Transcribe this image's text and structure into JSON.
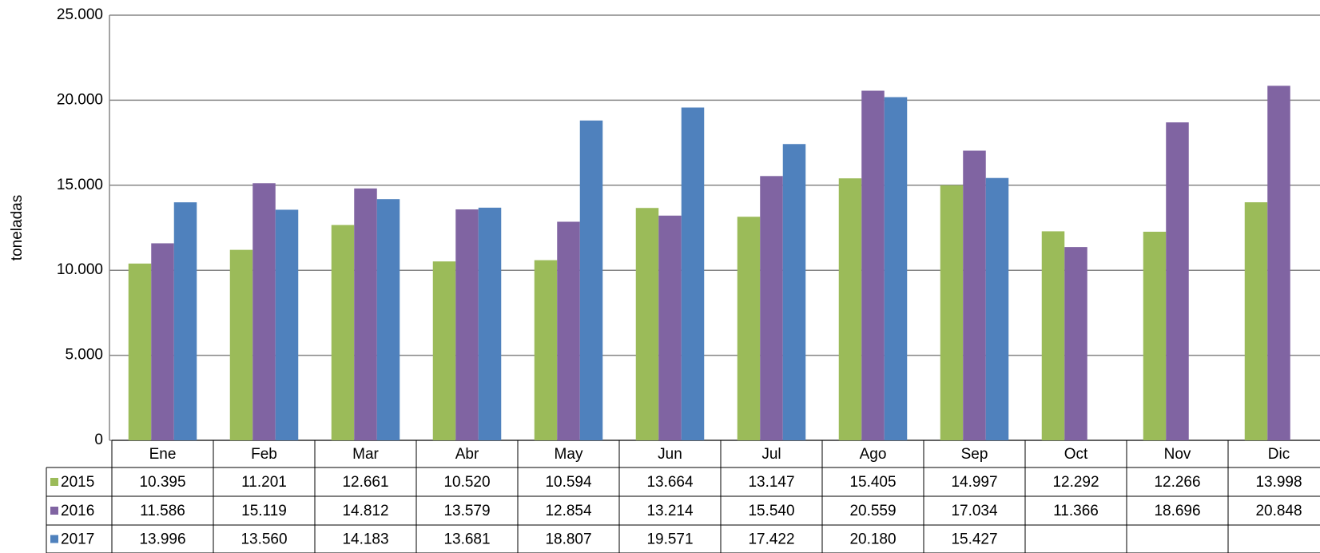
{
  "chart_data": {
    "type": "bar",
    "y_label": "toneladas",
    "categories": [
      "Ene",
      "Feb",
      "Mar",
      "Abr",
      "May",
      "Jun",
      "Jul",
      "Ago",
      "Sep",
      "Oct",
      "Nov",
      "Dic"
    ],
    "series": [
      {
        "name": "2015",
        "color": "#9bbb59",
        "values": [
          10395,
          11201,
          12661,
          10520,
          10594,
          13664,
          13147,
          15405,
          14997,
          12292,
          12266,
          13998
        ],
        "value_labels": [
          "10.395",
          "11.201",
          "12.661",
          "10.520",
          "10.594",
          "13.664",
          "13.147",
          "15.405",
          "14.997",
          "12.292",
          "12.266",
          "13.998"
        ]
      },
      {
        "name": "2016",
        "color": "#8064a2",
        "values": [
          11586,
          15119,
          14812,
          13579,
          12854,
          13214,
          15540,
          20559,
          17034,
          11366,
          18696,
          20848
        ],
        "value_labels": [
          "11.586",
          "15.119",
          "14.812",
          "13.579",
          "12.854",
          "13.214",
          "15.540",
          "20.559",
          "17.034",
          "11.366",
          "18.696",
          "20.848"
        ]
      },
      {
        "name": "2017",
        "color": "#4f81bd",
        "values": [
          13996,
          13560,
          14183,
          13681,
          18807,
          19571,
          17422,
          20180,
          15427,
          null,
          null,
          null
        ],
        "value_labels": [
          "13.996",
          "13.560",
          "14.183",
          "13.681",
          "18.807",
          "19.571",
          "17.422",
          "20.180",
          "15.427",
          null,
          null,
          null
        ]
      }
    ],
    "ylim": [
      0,
      25000
    ],
    "yticks": [
      0,
      {
        "value": 5000,
        "label": "5.000"
      },
      {
        "value": 10000,
        "label": "10.000"
      },
      {
        "value": 15000,
        "label": "15.000"
      },
      {
        "value": 20000,
        "label": "20.000"
      },
      {
        "value": 25000,
        "label": "25.000"
      }
    ],
    "grid": true
  }
}
